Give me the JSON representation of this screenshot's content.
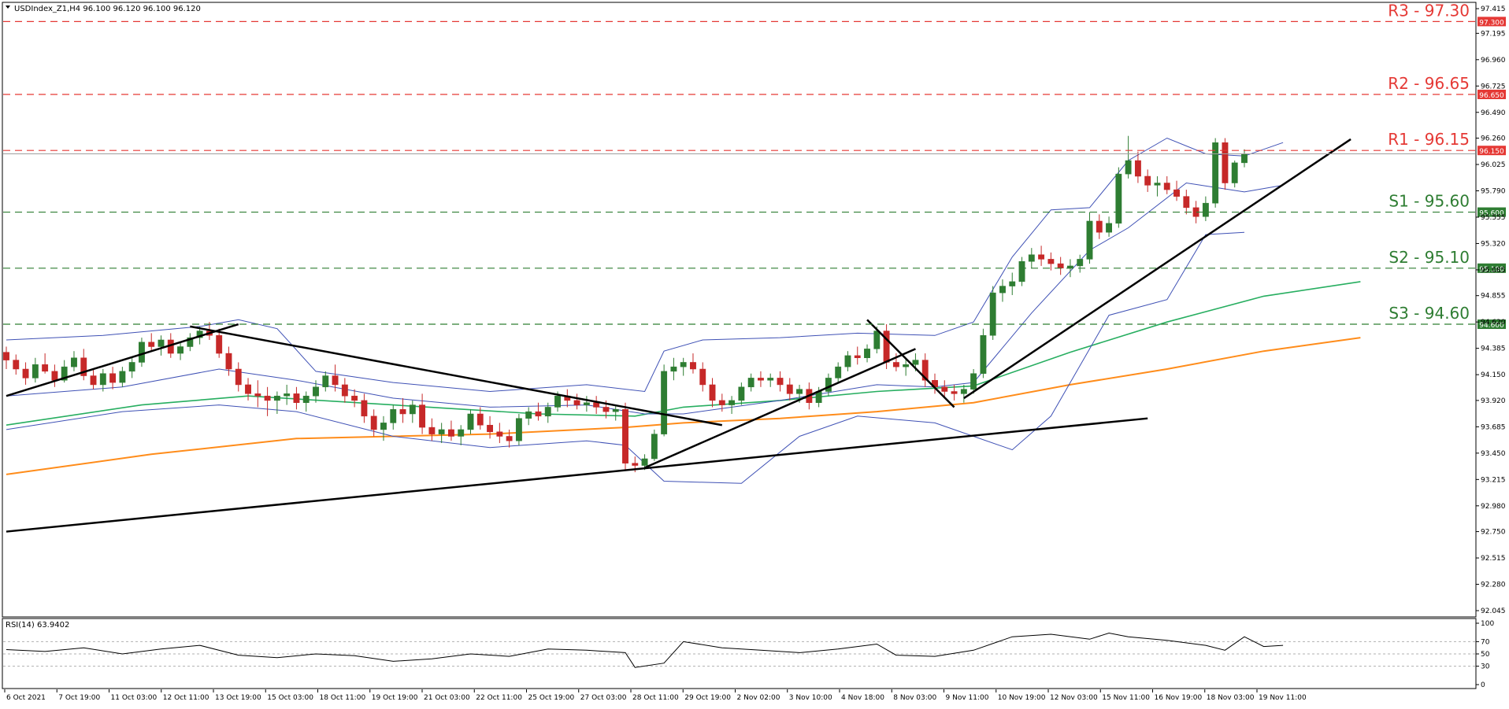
{
  "header": {
    "symbol_info": "USDIndex_Z1,H4  96.100 96.120 96.100 96.120"
  },
  "rsi_header": "RSI(14) 63.9402",
  "colors": {
    "bull": "#2e7d32",
    "bear": "#c62828",
    "resistance": "#e53935",
    "support": "#2e7d32",
    "ma_green": "#27ae60",
    "ma_orange": "#ff8c1a",
    "bollinger": "#3f51b5",
    "trend": "#000000",
    "rsi": "#000000"
  },
  "levels": [
    {
      "name": "R3",
      "value": 97.3,
      "label": "R3 - 97.30",
      "badge": "97.300",
      "kind": "resistance"
    },
    {
      "name": "R2",
      "value": 96.65,
      "label": "R2 - 96.65",
      "badge": "96.650",
      "kind": "resistance"
    },
    {
      "name": "R1",
      "value": 96.15,
      "label": "R1 - 96.15",
      "badge": "96.150",
      "kind": "resistance"
    },
    {
      "name": "S1",
      "value": 95.6,
      "label": "S1 - 95.60",
      "badge": "95.600",
      "kind": "support"
    },
    {
      "name": "S2",
      "value": 95.1,
      "label": "S2 - 95.10",
      "badge": "95.100",
      "kind": "support"
    },
    {
      "name": "S3",
      "value": 94.6,
      "label": "S3 - 94.60",
      "badge": "94.600",
      "kind": "support"
    }
  ],
  "chart_data": {
    "type": "candlestick",
    "instrument": "USDIndex_Z1",
    "timeframe": "H4",
    "y_ticks": [
      97.415,
      97.195,
      96.96,
      96.725,
      96.49,
      96.26,
      96.025,
      95.79,
      95.555,
      95.32,
      95.085,
      94.855,
      94.62,
      94.385,
      94.15,
      93.92,
      93.685,
      93.45,
      93.215,
      92.98,
      92.75,
      92.515,
      92.28,
      92.045
    ],
    "x_labels": [
      "6 Oct 2021",
      "7 Oct 19:00",
      "11 Oct 03:00",
      "12 Oct 11:00",
      "13 Oct 19:00",
      "15 Oct 03:00",
      "18 Oct 11:00",
      "19 Oct 19:00",
      "21 Oct 03:00",
      "22 Oct 11:00",
      "25 Oct 19:00",
      "27 Oct 03:00",
      "28 Oct 11:00",
      "29 Oct 19:00",
      "2 Nov 02:00",
      "3 Nov 10:00",
      "4 Nov 18:00",
      "8 Nov 03:00",
      "9 Nov 11:00",
      "10 Nov 19:00",
      "12 Nov 03:00",
      "15 Nov 11:00",
      "16 Nov 19:00",
      "18 Nov 03:00",
      "19 Nov 11:00"
    ],
    "candles": [
      [
        94.35,
        94.4,
        94.2,
        94.28
      ],
      [
        94.28,
        94.33,
        94.15,
        94.2
      ],
      [
        94.2,
        94.26,
        94.06,
        94.12
      ],
      [
        94.12,
        94.3,
        94.08,
        94.24
      ],
      [
        94.24,
        94.34,
        94.16,
        94.18
      ],
      [
        94.18,
        94.24,
        94.04,
        94.1
      ],
      [
        94.1,
        94.28,
        94.08,
        94.22
      ],
      [
        94.22,
        94.36,
        94.18,
        94.3
      ],
      [
        94.3,
        94.38,
        94.1,
        94.14
      ],
      [
        94.14,
        94.2,
        94.02,
        94.06
      ],
      [
        94.06,
        94.2,
        94.0,
        94.16
      ],
      [
        94.16,
        94.22,
        94.02,
        94.08
      ],
      [
        94.08,
        94.22,
        94.04,
        94.18
      ],
      [
        94.18,
        94.3,
        94.12,
        94.26
      ],
      [
        94.26,
        94.48,
        94.22,
        94.44
      ],
      [
        94.44,
        94.52,
        94.36,
        94.4
      ],
      [
        94.4,
        94.5,
        94.32,
        94.46
      ],
      [
        94.46,
        94.52,
        94.3,
        94.34
      ],
      [
        94.34,
        94.44,
        94.28,
        94.4
      ],
      [
        94.4,
        94.52,
        94.36,
        94.48
      ],
      [
        94.48,
        94.58,
        94.42,
        94.54
      ],
      [
        94.54,
        94.62,
        94.46,
        94.5
      ],
      [
        94.5,
        94.56,
        94.3,
        94.34
      ],
      [
        94.34,
        94.4,
        94.14,
        94.2
      ],
      [
        94.2,
        94.26,
        94.0,
        94.06
      ],
      [
        94.06,
        94.12,
        93.92,
        93.98
      ],
      [
        93.98,
        94.1,
        93.86,
        93.96
      ],
      [
        93.96,
        94.04,
        93.78,
        93.92
      ],
      [
        93.92,
        94.0,
        93.8,
        93.96
      ],
      [
        93.96,
        94.06,
        93.88,
        93.98
      ],
      [
        93.98,
        94.04,
        93.84,
        93.9
      ],
      [
        93.9,
        94.0,
        93.82,
        93.96
      ],
      [
        93.96,
        94.1,
        93.9,
        94.04
      ],
      [
        94.04,
        94.18,
        94.0,
        94.14
      ],
      [
        94.14,
        94.24,
        94.0,
        94.06
      ],
      [
        94.06,
        94.12,
        93.9,
        93.96
      ],
      [
        93.96,
        94.02,
        93.86,
        93.92
      ],
      [
        93.92,
        93.98,
        93.72,
        93.78
      ],
      [
        93.78,
        93.84,
        93.6,
        93.66
      ],
      [
        93.66,
        93.78,
        93.56,
        93.72
      ],
      [
        93.72,
        93.88,
        93.66,
        93.84
      ],
      [
        93.84,
        93.94,
        93.72,
        93.8
      ],
      [
        93.8,
        93.92,
        93.72,
        93.88
      ],
      [
        93.88,
        93.98,
        93.62,
        93.68
      ],
      [
        93.68,
        93.76,
        93.56,
        93.62
      ],
      [
        93.62,
        93.72,
        93.54,
        93.66
      ],
      [
        93.66,
        93.74,
        93.56,
        93.6
      ],
      [
        93.6,
        93.7,
        93.52,
        93.66
      ],
      [
        93.66,
        93.84,
        93.62,
        93.8
      ],
      [
        93.8,
        93.86,
        93.66,
        93.7
      ],
      [
        93.7,
        93.78,
        93.58,
        93.64
      ],
      [
        93.64,
        93.72,
        93.54,
        93.6
      ],
      [
        93.6,
        93.66,
        93.5,
        93.56
      ],
      [
        93.56,
        93.8,
        93.52,
        93.76
      ],
      [
        93.76,
        93.86,
        93.7,
        93.82
      ],
      [
        93.82,
        93.9,
        93.74,
        93.78
      ],
      [
        93.78,
        93.9,
        93.72,
        93.86
      ],
      [
        93.86,
        94.0,
        93.82,
        93.96
      ],
      [
        93.96,
        94.02,
        93.86,
        93.92
      ],
      [
        93.92,
        93.98,
        93.84,
        93.88
      ],
      [
        93.88,
        93.96,
        93.82,
        93.9
      ],
      [
        93.9,
        93.96,
        93.8,
        93.86
      ],
      [
        93.86,
        93.92,
        93.76,
        93.82
      ],
      [
        93.82,
        93.88,
        93.74,
        93.84
      ],
      [
        93.84,
        93.9,
        93.3,
        93.36
      ],
      [
        93.36,
        93.42,
        93.28,
        93.34
      ],
      [
        93.34,
        93.44,
        93.3,
        93.4
      ],
      [
        93.4,
        93.66,
        93.38,
        93.62
      ],
      [
        93.62,
        94.24,
        93.6,
        94.18
      ],
      [
        94.18,
        94.3,
        94.1,
        94.22
      ],
      [
        94.22,
        94.3,
        94.14,
        94.26
      ],
      [
        94.26,
        94.34,
        94.16,
        94.2
      ],
      [
        94.2,
        94.26,
        94.0,
        94.06
      ],
      [
        94.06,
        94.12,
        93.86,
        93.92
      ],
      [
        93.92,
        93.98,
        93.82,
        93.88
      ],
      [
        93.88,
        93.96,
        93.8,
        93.92
      ],
      [
        93.92,
        94.08,
        93.88,
        94.04
      ],
      [
        94.04,
        94.16,
        94.0,
        94.12
      ],
      [
        94.12,
        94.18,
        94.04,
        94.1
      ],
      [
        94.1,
        94.16,
        94.04,
        94.12
      ],
      [
        94.12,
        94.18,
        94.0,
        94.06
      ],
      [
        94.06,
        94.12,
        93.92,
        93.98
      ],
      [
        93.98,
        94.06,
        93.9,
        94.02
      ],
      [
        94.02,
        94.08,
        93.84,
        93.9
      ],
      [
        93.9,
        94.04,
        93.86,
        94.0
      ],
      [
        94.0,
        94.16,
        93.96,
        94.12
      ],
      [
        94.12,
        94.26,
        94.08,
        94.22
      ],
      [
        94.22,
        94.36,
        94.18,
        94.32
      ],
      [
        94.32,
        94.4,
        94.24,
        94.3
      ],
      [
        94.3,
        94.42,
        94.26,
        94.38
      ],
      [
        94.38,
        94.58,
        94.34,
        94.54
      ],
      [
        94.54,
        94.6,
        94.2,
        94.26
      ],
      [
        94.26,
        94.34,
        94.18,
        94.22
      ],
      [
        94.22,
        94.3,
        94.14,
        94.24
      ],
      [
        94.24,
        94.34,
        94.18,
        94.28
      ],
      [
        94.28,
        94.34,
        94.04,
        94.1
      ],
      [
        94.1,
        94.16,
        93.98,
        94.04
      ],
      [
        94.04,
        94.1,
        93.94,
        94.0
      ],
      [
        94.0,
        94.06,
        93.92,
        93.98
      ],
      [
        93.98,
        94.06,
        93.9,
        94.02
      ],
      [
        94.02,
        94.2,
        93.98,
        94.16
      ],
      [
        94.16,
        94.56,
        94.12,
        94.5
      ],
      [
        94.5,
        94.94,
        94.46,
        94.88
      ],
      [
        94.88,
        95.0,
        94.8,
        94.94
      ],
      [
        94.94,
        95.06,
        94.86,
        94.98
      ],
      [
        94.98,
        95.2,
        94.94,
        95.16
      ],
      [
        95.16,
        95.28,
        95.1,
        95.22
      ],
      [
        95.22,
        95.3,
        95.12,
        95.18
      ],
      [
        95.18,
        95.24,
        95.08,
        95.14
      ],
      [
        95.14,
        95.2,
        95.04,
        95.1
      ],
      [
        95.1,
        95.18,
        95.02,
        95.12
      ],
      [
        95.12,
        95.22,
        95.06,
        95.18
      ],
      [
        95.18,
        95.6,
        95.14,
        95.52
      ],
      [
        95.52,
        95.58,
        95.36,
        95.42
      ],
      [
        95.42,
        95.56,
        95.38,
        95.5
      ],
      [
        95.5,
        96.0,
        95.46,
        95.94
      ],
      [
        95.94,
        96.28,
        95.9,
        96.06
      ],
      [
        96.06,
        96.14,
        95.86,
        95.92
      ],
      [
        95.92,
        95.98,
        95.78,
        95.84
      ],
      [
        95.84,
        95.92,
        95.74,
        95.86
      ],
      [
        95.86,
        95.92,
        95.76,
        95.8
      ],
      [
        95.8,
        95.88,
        95.7,
        95.74
      ],
      [
        95.74,
        95.8,
        95.58,
        95.64
      ],
      [
        95.64,
        95.7,
        95.5,
        95.56
      ],
      [
        95.56,
        95.74,
        95.52,
        95.68
      ],
      [
        95.68,
        96.26,
        95.64,
        96.22
      ],
      [
        96.22,
        96.26,
        95.8,
        95.86
      ],
      [
        95.86,
        96.06,
        95.82,
        96.04
      ],
      [
        96.04,
        96.16,
        96.0,
        96.12
      ]
    ],
    "ma_green": [
      [
        0,
        93.7
      ],
      [
        14,
        93.88
      ],
      [
        25,
        93.96
      ],
      [
        40,
        93.88
      ],
      [
        55,
        93.8
      ],
      [
        65,
        93.78
      ],
      [
        70,
        93.86
      ],
      [
        80,
        93.92
      ],
      [
        90,
        94.0
      ],
      [
        100,
        94.05
      ],
      [
        110,
        94.35
      ],
      [
        120,
        94.62
      ],
      [
        130,
        94.85
      ],
      [
        140,
        94.98
      ]
    ],
    "ma_orange": [
      [
        0,
        93.26
      ],
      [
        15,
        93.44
      ],
      [
        30,
        93.58
      ],
      [
        50,
        93.62
      ],
      [
        64,
        93.68
      ],
      [
        70,
        93.72
      ],
      [
        80,
        93.76
      ],
      [
        90,
        93.82
      ],
      [
        100,
        93.9
      ],
      [
        110,
        94.06
      ],
      [
        120,
        94.2
      ],
      [
        130,
        94.36
      ],
      [
        140,
        94.48
      ]
    ],
    "bb_upper": [
      [
        0,
        94.46
      ],
      [
        10,
        94.5
      ],
      [
        20,
        94.58
      ],
      [
        24,
        94.64
      ],
      [
        28,
        94.56
      ],
      [
        32,
        94.18
      ],
      [
        40,
        94.08
      ],
      [
        50,
        94.0
      ],
      [
        60,
        94.06
      ],
      [
        66,
        94.0
      ],
      [
        68,
        94.36
      ],
      [
        72,
        94.46
      ],
      [
        80,
        94.48
      ],
      [
        88,
        94.52
      ],
      [
        96,
        94.5
      ],
      [
        100,
        94.62
      ],
      [
        104,
        95.2
      ],
      [
        108,
        95.62
      ],
      [
        112,
        95.64
      ],
      [
        116,
        96.06
      ],
      [
        120,
        96.26
      ],
      [
        124,
        96.12
      ],
      [
        128,
        96.1
      ],
      [
        132,
        96.22
      ]
    ],
    "bb_middle": [
      [
        0,
        93.96
      ],
      [
        12,
        94.04
      ],
      [
        22,
        94.2
      ],
      [
        30,
        94.1
      ],
      [
        40,
        93.94
      ],
      [
        50,
        93.86
      ],
      [
        60,
        93.88
      ],
      [
        66,
        93.8
      ],
      [
        70,
        93.8
      ],
      [
        80,
        93.92
      ],
      [
        90,
        94.06
      ],
      [
        96,
        94.04
      ],
      [
        100,
        94.08
      ],
      [
        106,
        94.7
      ],
      [
        112,
        95.26
      ],
      [
        116,
        95.46
      ],
      [
        122,
        95.86
      ],
      [
        128,
        95.78
      ],
      [
        132,
        95.84
      ]
    ],
    "bb_lower": [
      [
        0,
        93.66
      ],
      [
        12,
        93.82
      ],
      [
        22,
        93.88
      ],
      [
        30,
        93.82
      ],
      [
        40,
        93.6
      ],
      [
        50,
        93.5
      ],
      [
        60,
        93.56
      ],
      [
        64,
        93.52
      ],
      [
        68,
        93.2
      ],
      [
        76,
        93.18
      ],
      [
        82,
        93.6
      ],
      [
        88,
        93.78
      ],
      [
        96,
        93.72
      ],
      [
        100,
        93.6
      ],
      [
        104,
        93.48
      ],
      [
        108,
        93.78
      ],
      [
        114,
        94.68
      ],
      [
        120,
        94.82
      ],
      [
        124,
        95.4
      ],
      [
        128,
        95.42
      ]
    ],
    "trendlines": [
      [
        [
          0,
          93.96
        ],
        [
          24,
          94.6
        ]
      ],
      [
        [
          19,
          94.58
        ],
        [
          74,
          93.7
        ]
      ],
      [
        [
          0,
          92.75
        ],
        [
          118,
          93.76
        ]
      ],
      [
        [
          66,
          93.32
        ],
        [
          94,
          94.38
        ]
      ],
      [
        [
          89,
          94.64
        ],
        [
          98,
          93.86
        ]
      ],
      [
        [
          99,
          93.94
        ],
        [
          139,
          96.25
        ]
      ]
    ],
    "rsi": {
      "title": "RSI(14) 63.9402",
      "ticks": [
        100,
        70,
        50,
        30,
        0
      ],
      "values": [
        [
          0,
          57
        ],
        [
          4,
          54
        ],
        [
          8,
          60
        ],
        [
          12,
          50
        ],
        [
          16,
          58
        ],
        [
          20,
          64
        ],
        [
          24,
          48
        ],
        [
          28,
          44
        ],
        [
          32,
          50
        ],
        [
          36,
          47
        ],
        [
          40,
          38
        ],
        [
          44,
          42
        ],
        [
          48,
          50
        ],
        [
          52,
          46
        ],
        [
          56,
          58
        ],
        [
          60,
          56
        ],
        [
          64,
          52
        ],
        [
          65,
          28
        ],
        [
          68,
          35
        ],
        [
          70,
          70
        ],
        [
          74,
          60
        ],
        [
          78,
          56
        ],
        [
          82,
          52
        ],
        [
          86,
          58
        ],
        [
          90,
          66
        ],
        [
          92,
          48
        ],
        [
          96,
          46
        ],
        [
          100,
          56
        ],
        [
          104,
          78
        ],
        [
          108,
          82
        ],
        [
          112,
          74
        ],
        [
          114,
          84
        ],
        [
          116,
          78
        ],
        [
          120,
          72
        ],
        [
          124,
          64
        ],
        [
          126,
          56
        ],
        [
          128,
          78
        ],
        [
          130,
          62
        ],
        [
          132,
          64
        ]
      ]
    }
  }
}
